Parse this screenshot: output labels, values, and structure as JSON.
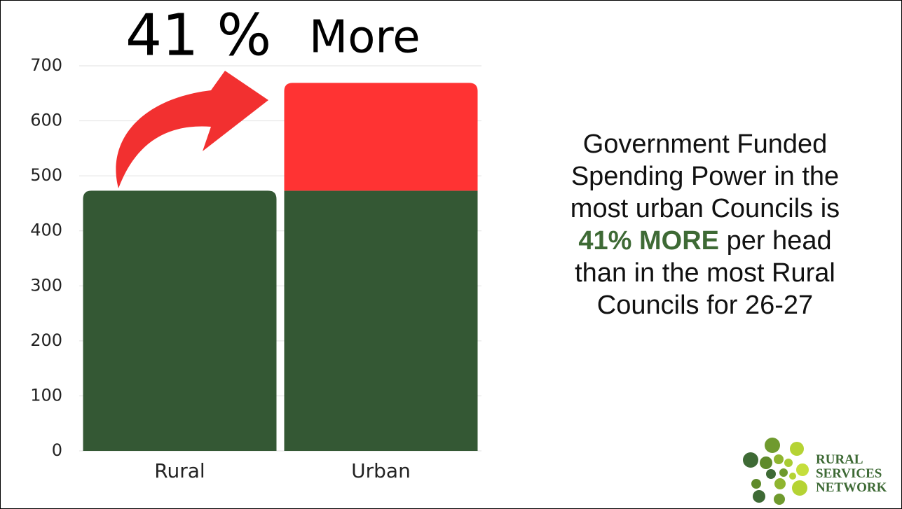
{
  "chart_data": {
    "type": "stacked-bar",
    "annotations": [
      "41 %",
      "More"
    ],
    "categories": [
      "Rural",
      "Urban"
    ],
    "series": [
      {
        "color": "#345834",
        "values": [
          473,
          473
        ]
      },
      {
        "color": "#ff3333",
        "values": [
          0,
          196
        ]
      }
    ],
    "ylim": [
      0,
      700
    ],
    "yticks": [
      0,
      100,
      200,
      300,
      400,
      500,
      600,
      700
    ],
    "grid": true
  },
  "note": {
    "lines": [
      "Government Funded",
      "Spending Power in the",
      "most urban Councils is"
    ],
    "highlight": "41% MORE",
    "after_highlight": "per head",
    "more_lines": [
      "than in the most Rural",
      "Councils for 26-27"
    ]
  },
  "logo": [
    "RURAL",
    "SERVICES",
    "NETWORK"
  ]
}
